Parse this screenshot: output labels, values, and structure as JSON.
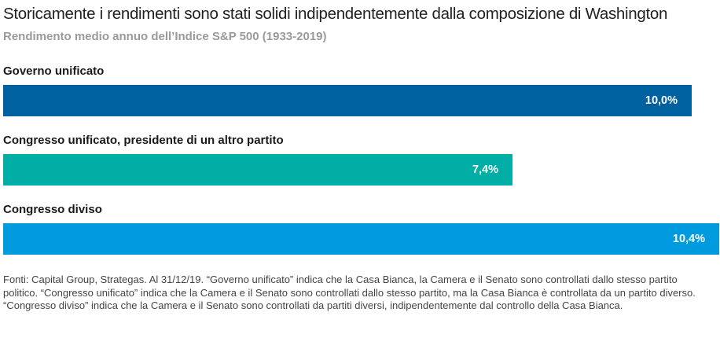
{
  "title": "Storicamente i rendimenti sono stati solidi indipendentemente dalla composizione di Washington",
  "subtitle": "Rendimento medio annuo dell’Indice S&P 500 (1933-2019)",
  "chart_data": {
    "type": "bar",
    "orientation": "horizontal",
    "categories": [
      "Governo unificato",
      "Congresso unificato, presidente di un altro partito",
      "Congresso diviso"
    ],
    "values": [
      10.0,
      7.4,
      10.4
    ],
    "value_labels": [
      "10,0%",
      "7,4%",
      "10,4%"
    ],
    "colors": [
      "#0061a0",
      "#00aea5",
      "#009bde"
    ],
    "xlim": [
      0,
      10.4
    ],
    "grid": false,
    "legend": "none"
  },
  "footnote": "Fonti: Capital Group, Strategas. Al 31/12/19. “Governo unificato” indica che la Casa Bianca, la Camera e il Senato sono controllati dallo stesso partito politico. “Congresso unificato” indica che la Camera e il Senato sono controllati dallo stesso partito, ma la Casa Bianca è controllata da un partito diverso. “Congresso diviso” indica che la Camera e il Senato sono controllati da partiti diversi, indipendentemente dal controllo della Casa Bianca."
}
